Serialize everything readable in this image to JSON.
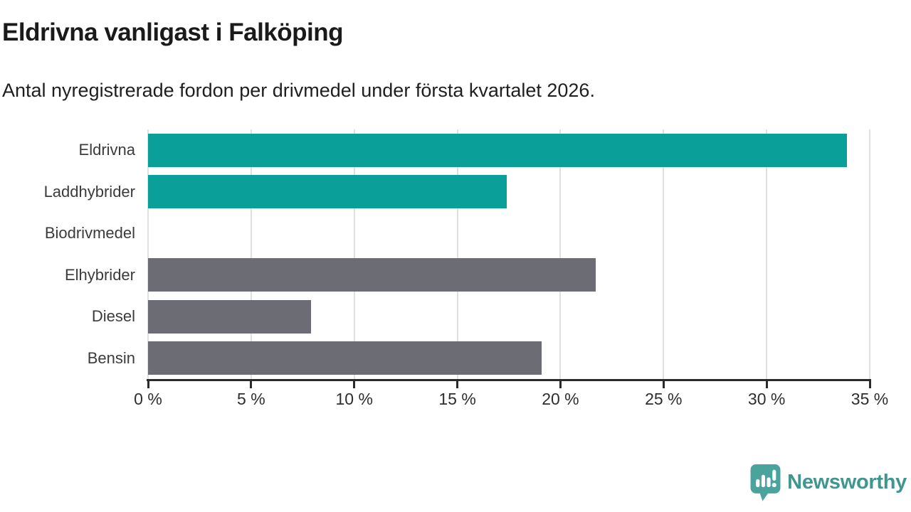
{
  "header": {
    "title": "Eldrivna vanligast i Falköping",
    "subtitle": "Antal nyregistrerade fordon per drivmedel under första kvartalet 2026."
  },
  "chart_data": {
    "type": "bar",
    "orientation": "horizontal",
    "title": "Eldrivna vanligast i Falköping",
    "subtitle": "Antal nyregistrerade fordon per drivmedel under första kvartalet 2026.",
    "categories": [
      "Eldrivna",
      "Laddhybrider",
      "Biodrivmedel",
      "Elhybrider",
      "Diesel",
      "Bensin"
    ],
    "values": [
      33.9,
      17.4,
      0,
      21.7,
      7.9,
      19.1
    ],
    "unit": "%",
    "xlim": [
      0,
      35
    ],
    "x_ticks": [
      0,
      5,
      10,
      15,
      20,
      25,
      30,
      35
    ],
    "x_tick_labels": [
      "0 %",
      "5 %",
      "10 %",
      "15 %",
      "20 %",
      "25 %",
      "30 %",
      "35 %"
    ],
    "bar_colors": [
      "#0aa099",
      "#0aa099",
      "#6c6c74",
      "#6c6c74",
      "#6c6c74",
      "#6c6c74"
    ],
    "grid": "vertical-light",
    "legend": "none"
  },
  "colors": {
    "teal": "#0aa099",
    "gray": "#6c6c74",
    "gridline": "#e0e0e0",
    "axis": "#2b2b2b",
    "brand_teal": "#3f968f",
    "logo_bubble": "#4aa39c"
  },
  "footer": {
    "brand_name": "Newsworthy",
    "logo_icon": "bar-chart-speech-bubble-icon"
  }
}
